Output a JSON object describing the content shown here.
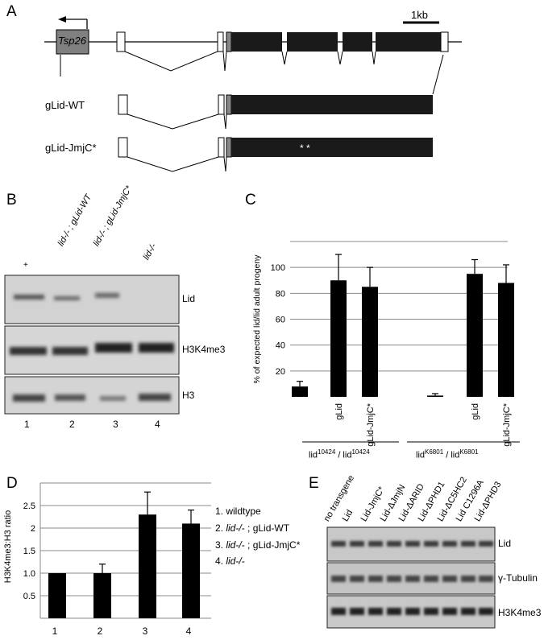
{
  "panelA": {
    "letter": "A",
    "gene_label": "Tsp26",
    "scale_label": "1kb",
    "construct_wt": "gLid-WT",
    "construct_jmjc": "gLid-JmjC*",
    "mutation_marks": "* *"
  },
  "panelB": {
    "letter": "B",
    "lane_headers": [
      "+",
      "lid-/- ; gLid-WT",
      "lid-/- ; gLid-JmjC*",
      "lid-/-"
    ],
    "blot_labels": [
      "Lid",
      "H3K4me3",
      "H3"
    ],
    "lane_numbers": [
      "1",
      "2",
      "3",
      "4"
    ]
  },
  "panelC": {
    "letter": "C",
    "group1_label": "lid10424 / lid10424",
    "group2_label": "lidK6801 / lidK6801"
  },
  "panelD": {
    "letter": "D",
    "legend": [
      "1. wildtype",
      "2. lid-/- ; gLid-WT",
      "3. lid-/- ; gLid-JmjC*",
      "4. lid-/-"
    ]
  },
  "panelE": {
    "letter": "E",
    "lane_headers": [
      "no transgene",
      "Lid",
      "Lid-JmjC*",
      "Lid-ΔJmjN",
      "Lid-ΔARID",
      "Lid-ΔPHD1",
      "Lid-ΔC5HC2",
      "Lid C1296A",
      "Lid-ΔPHD3"
    ],
    "blot_labels": [
      "Lid",
      "γ-Tubulin",
      "H3K4me3"
    ]
  },
  "chart_data": [
    {
      "type": "bar",
      "panel": "C",
      "categories": [
        "",
        "gLid",
        "gLid-JmjC*",
        "",
        "gLid",
        "gLid-JmjC*"
      ],
      "values": [
        8,
        90,
        85,
        1,
        95,
        88
      ],
      "errors": [
        4,
        20,
        15,
        1.5,
        11,
        14
      ],
      "ylabel": "% of expected lid/lid adult progeny",
      "yticks": [
        20,
        40,
        60,
        80,
        100
      ],
      "ylim": [
        0,
        120
      ],
      "grid": true
    },
    {
      "type": "bar",
      "panel": "D",
      "categories": [
        "1",
        "2",
        "3",
        "4"
      ],
      "values": [
        1.0,
        1.0,
        2.3,
        2.1
      ],
      "errors": [
        0,
        0.2,
        0.5,
        0.3
      ],
      "ylabel": "H3K4me3:H3 ratio",
      "yticks": [
        "0.5",
        "1.0",
        "1.5",
        "2",
        "2.5"
      ],
      "ylim": [
        0,
        3
      ],
      "grid": true
    }
  ]
}
